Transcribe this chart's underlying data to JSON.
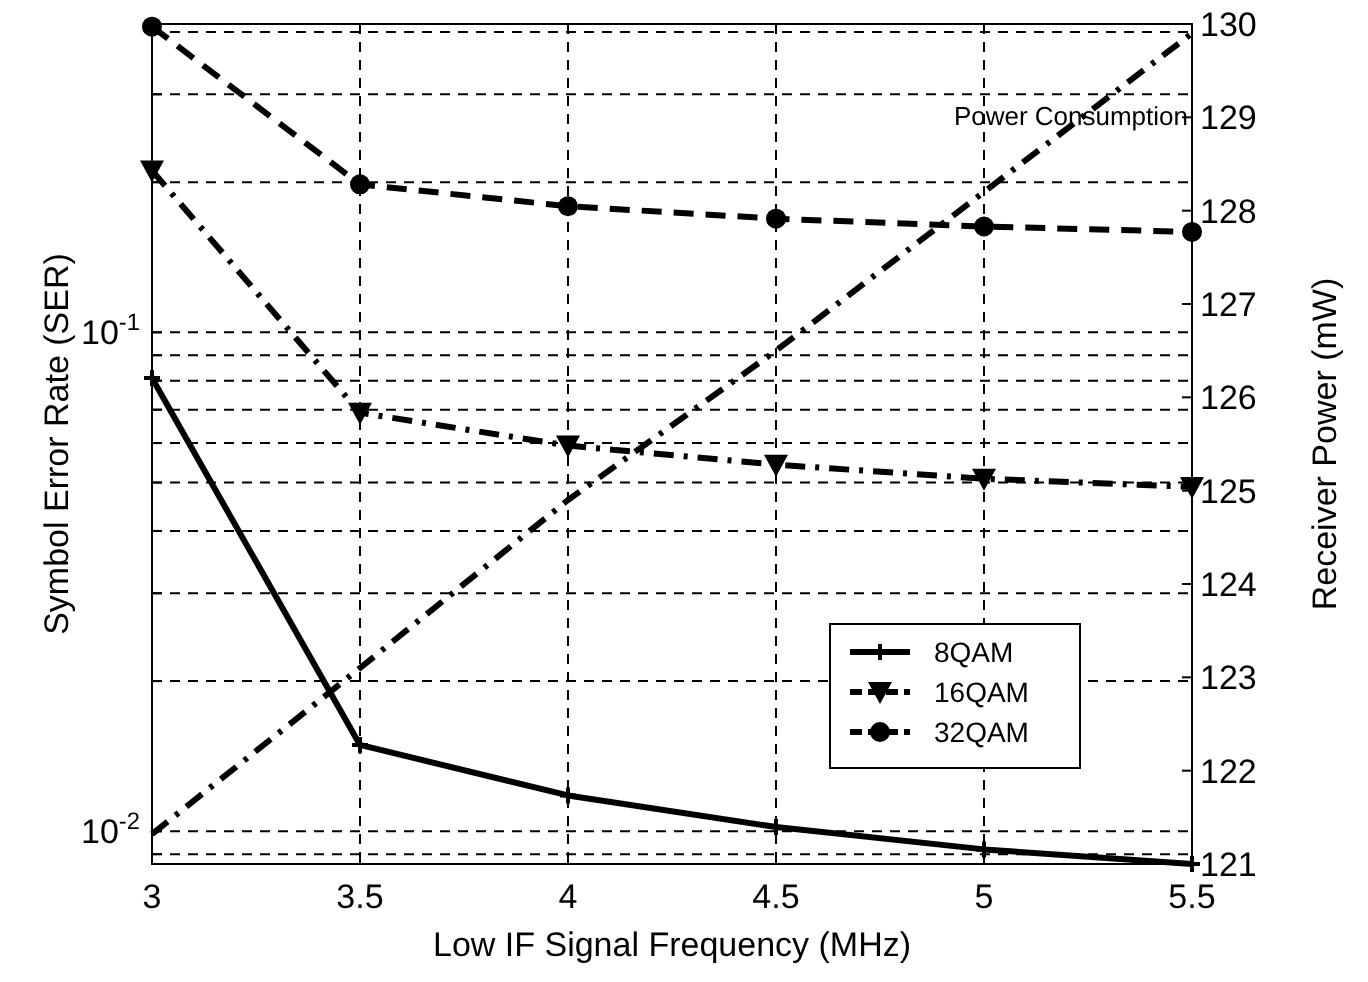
{
  "chart_data": {
    "type": "line",
    "xlabel": "Low IF Signal Frequency (MHz)",
    "ylabel": "Symbol Error Rate (SER)",
    "y2label": "Receiver Power (mW)",
    "x": [
      3,
      3.5,
      4,
      4.5,
      5,
      5.5
    ],
    "xlim": [
      3,
      5.5
    ],
    "xticks": [
      3,
      3.5,
      4,
      4.5,
      5,
      5.5
    ],
    "log": "y",
    "ylim": [
      0.0086,
      0.415
    ],
    "yticks": [
      {
        "value": 0.009,
        "label": null
      },
      {
        "value": 0.01,
        "label": "10$^{-2}$"
      },
      {
        "value": 0.02,
        "label": null
      },
      {
        "value": 0.03,
        "label": null
      },
      {
        "value": 0.04,
        "label": null
      },
      {
        "value": 0.05,
        "label": null
      },
      {
        "value": 0.06,
        "label": null
      },
      {
        "value": 0.07,
        "label": null
      },
      {
        "value": 0.08,
        "label": null
      },
      {
        "value": 0.09,
        "label": null
      },
      {
        "value": 0.1,
        "label": "10$^{-1}$"
      },
      {
        "value": 0.2,
        "label": null
      },
      {
        "value": 0.3,
        "label": null
      },
      {
        "value": 0.4,
        "label": null
      }
    ],
    "y2lim": [
      121,
      130
    ],
    "y2ticks": [
      121,
      122,
      123,
      124,
      125,
      126,
      127,
      128,
      129,
      130
    ],
    "grid": true,
    "legend": "bottom right",
    "series": [
      {
        "name": "8QAM",
        "color": "#000000",
        "marker": "cross",
        "line_style": "solid",
        "values": [
          0.081,
          0.0149,
          0.0118,
          0.0102,
          0.0092,
          0.0086
        ]
      },
      {
        "name": "16QAM",
        "color": "#000000",
        "marker": "triangle",
        "line_style": "dashdot",
        "values": [
          0.211,
          0.069,
          0.0593,
          0.0543,
          0.0509,
          0.049
        ]
      },
      {
        "name": "32QAM",
        "color": "#000000",
        "marker": "circle",
        "line_style": "dashed",
        "values": [
          0.41,
          0.198,
          0.179,
          0.169,
          0.163,
          0.159
        ]
      },
      {
        "name": "Power Consumption",
        "color": "#000000",
        "marker": "none",
        "line_style": "dashdot",
        "axis": "y2",
        "values": [
          121.32,
          123.1,
          124.9,
          126.5,
          128.2,
          129.9
        ]
      }
    ]
  }
}
